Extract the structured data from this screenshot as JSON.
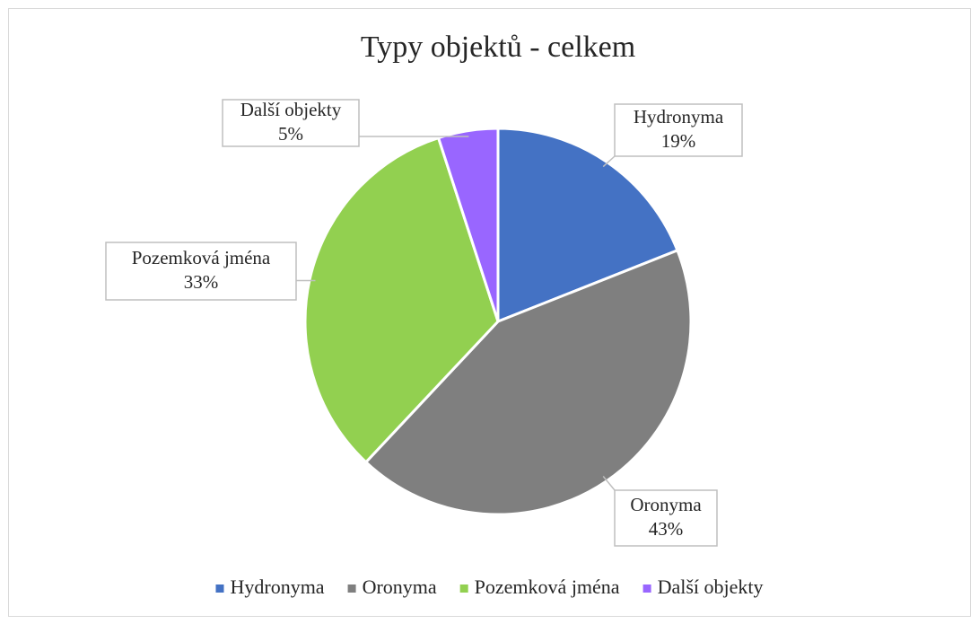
{
  "chart_data": {
    "type": "pie",
    "title": "Typy objektů - celkem",
    "categories": [
      "Hydronyma",
      "Oronyma",
      "Pozemková jména",
      "Další objekty"
    ],
    "values": [
      19,
      43,
      33,
      5
    ],
    "value_labels": [
      "19%",
      "43%",
      "33%",
      "5%"
    ],
    "colors": [
      "#4472c4",
      "#7f7f7f",
      "#92d050",
      "#9966ff"
    ],
    "legend": "bottom"
  }
}
